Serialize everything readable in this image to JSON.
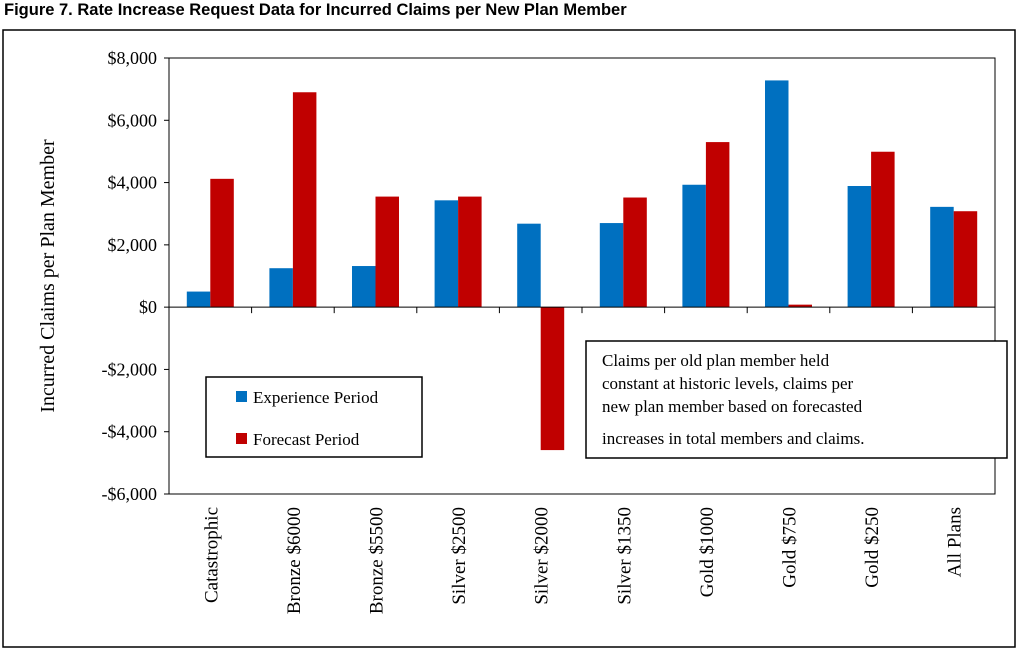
{
  "figure_title": "Figure 7.  Rate Increase Request Data for Incurred Claims per New Plan Member",
  "chart_data": {
    "type": "bar",
    "title": "",
    "xlabel": "",
    "ylabel": "Incurred Claims per Plan Member",
    "ylim": [
      -6000,
      8000
    ],
    "yticks": [
      -6000,
      -4000,
      -2000,
      0,
      2000,
      4000,
      6000,
      8000
    ],
    "ytick_labels": [
      "-$6,000",
      "-$4,000",
      "-$2,000",
      "$0",
      "$2,000",
      "$4,000",
      "$6,000",
      "$8,000"
    ],
    "grid": false,
    "legend_position": "left, below zero line",
    "categories": [
      "Catastrophic",
      "Bronze $6000",
      "Bronze $5500",
      "Silver $2500",
      "Silver $2000",
      "Silver $1350",
      "Gold $1000",
      "Gold $750",
      "Gold $250",
      "All Plans"
    ],
    "series": [
      {
        "name": "Experience Period",
        "color": "#0070C0",
        "values": [
          500,
          1250,
          1320,
          3430,
          2680,
          2700,
          3930,
          7280,
          3890,
          3220
        ]
      },
      {
        "name": "Forecast Period",
        "color": "#C00000",
        "values": [
          4120,
          6900,
          3550,
          3550,
          -4590,
          3520,
          5300,
          80,
          4990,
          3080
        ]
      }
    ],
    "annotation": [
      "Claims per old plan member held",
      "constant at historic levels, claims per",
      "new plan member based on forecasted",
      "increases in total members and claims."
    ]
  }
}
